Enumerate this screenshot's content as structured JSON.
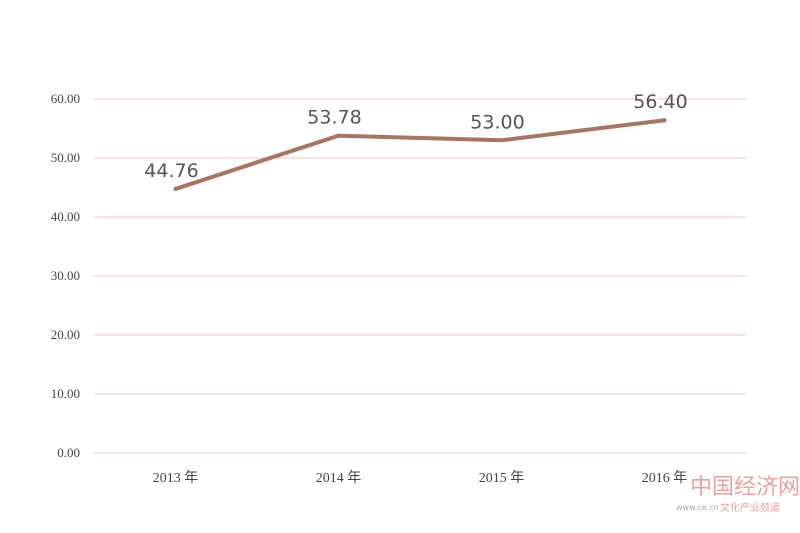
{
  "chart_data": {
    "type": "line",
    "categories": [
      "2013 年",
      "2014 年",
      "2015 年",
      "2016 年"
    ],
    "series": [
      {
        "values": [
          44.76,
          53.78,
          53.0,
          56.4
        ]
      }
    ],
    "data_labels": [
      "44.76",
      "53.78",
      "53.00",
      "56.40"
    ],
    "y_ticks": [
      "0.00",
      "10.00",
      "20.00",
      "30.00",
      "40.00",
      "50.00",
      "60.00"
    ],
    "ylim": [
      0,
      60
    ],
    "grid": true,
    "line_color": "#a97561",
    "grid_color": "#f1c4c4"
  },
  "watermark": {
    "brand": "中国经济网",
    "url": "www.ce.cn",
    "channel": "文化产业频道"
  }
}
